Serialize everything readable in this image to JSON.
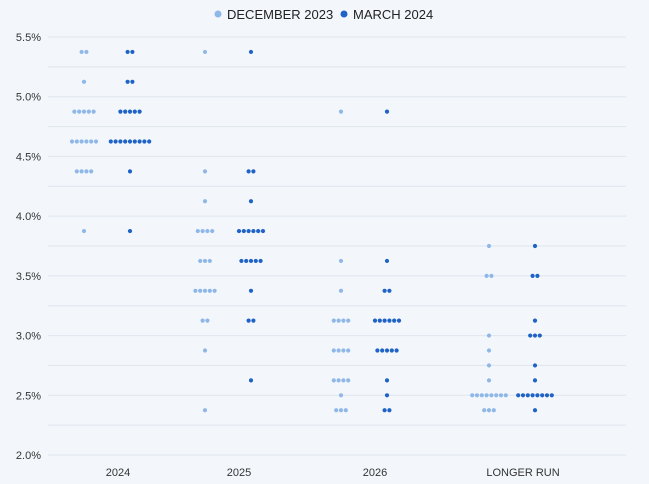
{
  "chart_data": {
    "type": "scatter",
    "title": "",
    "xlabel": "",
    "ylabel": "",
    "categories": [
      "2024",
      "2025",
      "2026",
      "LONGER RUN"
    ],
    "yticks": [
      "2.0%",
      "2.5%",
      "3.0%",
      "3.5%",
      "4.0%",
      "4.5%",
      "5.0%",
      "5.5%"
    ],
    "ylim": [
      2.0,
      5.5
    ],
    "grid": true,
    "legend_position": "top-center",
    "series": [
      {
        "name": "DECEMBER 2023",
        "color": "#8fb8e8",
        "dots": [
          [
            {
              "value": 5.375,
              "count": 2
            },
            {
              "value": 5.125,
              "count": 1
            },
            {
              "value": 4.875,
              "count": 5
            },
            {
              "value": 4.625,
              "count": 6
            },
            {
              "value": 4.375,
              "count": 4
            },
            {
              "value": 3.875,
              "count": 1
            }
          ],
          [
            {
              "value": 5.375,
              "count": 1
            },
            {
              "value": 4.375,
              "count": 1
            },
            {
              "value": 4.125,
              "count": 1
            },
            {
              "value": 3.875,
              "count": 4
            },
            {
              "value": 3.625,
              "count": 3
            },
            {
              "value": 3.375,
              "count": 5
            },
            {
              "value": 3.125,
              "count": 2
            },
            {
              "value": 2.875,
              "count": 1
            },
            {
              "value": 2.375,
              "count": 1
            }
          ],
          [
            {
              "value": 4.875,
              "count": 1
            },
            {
              "value": 3.625,
              "count": 1
            },
            {
              "value": 3.375,
              "count": 1
            },
            {
              "value": 3.125,
              "count": 4
            },
            {
              "value": 2.875,
              "count": 4
            },
            {
              "value": 2.625,
              "count": 4
            },
            {
              "value": 2.5,
              "count": 1
            },
            {
              "value": 2.375,
              "count": 3
            }
          ],
          [
            {
              "value": 3.75,
              "count": 1
            },
            {
              "value": 3.5,
              "count": 2
            },
            {
              "value": 3.0,
              "count": 1
            },
            {
              "value": 2.875,
              "count": 1
            },
            {
              "value": 2.75,
              "count": 1
            },
            {
              "value": 2.625,
              "count": 1
            },
            {
              "value": 2.5,
              "count": 8
            },
            {
              "value": 2.375,
              "count": 3
            }
          ]
        ]
      },
      {
        "name": "MARCH 2024",
        "color": "#1f63c6",
        "dots": [
          [
            {
              "value": 5.375,
              "count": 2
            },
            {
              "value": 5.125,
              "count": 2
            },
            {
              "value": 4.875,
              "count": 5
            },
            {
              "value": 4.625,
              "count": 9
            },
            {
              "value": 4.375,
              "count": 1
            },
            {
              "value": 3.875,
              "count": 1
            }
          ],
          [
            {
              "value": 5.375,
              "count": 1
            },
            {
              "value": 4.375,
              "count": 2
            },
            {
              "value": 4.125,
              "count": 1
            },
            {
              "value": 3.875,
              "count": 6
            },
            {
              "value": 3.625,
              "count": 5
            },
            {
              "value": 3.375,
              "count": 1
            },
            {
              "value": 3.125,
              "count": 2
            },
            {
              "value": 2.625,
              "count": 1
            }
          ],
          [
            {
              "value": 4.875,
              "count": 1
            },
            {
              "value": 3.625,
              "count": 1
            },
            {
              "value": 3.375,
              "count": 2
            },
            {
              "value": 3.125,
              "count": 6
            },
            {
              "value": 2.875,
              "count": 5
            },
            {
              "value": 2.625,
              "count": 1
            },
            {
              "value": 2.5,
              "count": 1
            },
            {
              "value": 2.375,
              "count": 2
            }
          ],
          [
            {
              "value": 3.75,
              "count": 1
            },
            {
              "value": 3.5,
              "count": 2
            },
            {
              "value": 3.125,
              "count": 1
            },
            {
              "value": 3.0,
              "count": 3
            },
            {
              "value": 2.75,
              "count": 1
            },
            {
              "value": 2.625,
              "count": 1
            },
            {
              "value": 2.5,
              "count": 8
            },
            {
              "value": 2.375,
              "count": 1
            }
          ]
        ]
      }
    ]
  }
}
